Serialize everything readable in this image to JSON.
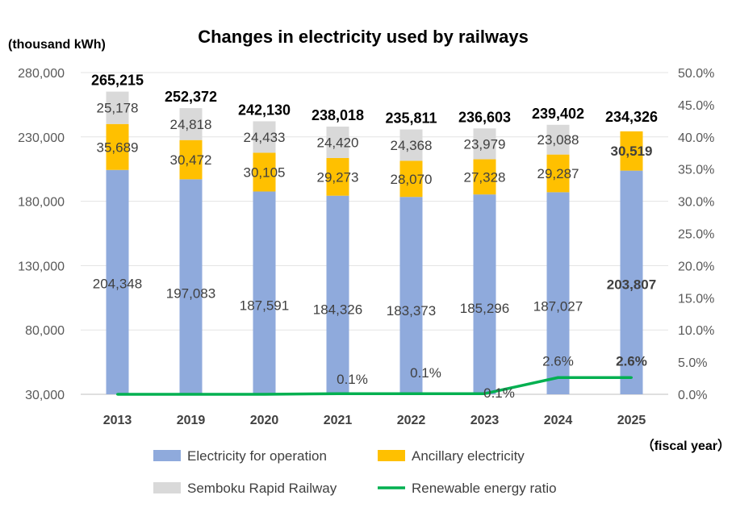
{
  "chart_data": {
    "type": "bar",
    "title": "Changes in electricity used by railways",
    "ylabel": "(thousand kWh)",
    "xlabel": "（fiscal year）",
    "categories": [
      "2013",
      "2019",
      "2020",
      "2021",
      "2022",
      "2023",
      "2024",
      "2025"
    ],
    "series": [
      {
        "name": "Electricity for operation",
        "values": [
          204348,
          197083,
          187591,
          184326,
          183373,
          185296,
          187027,
          203807
        ],
        "labels": [
          "204,348",
          "197,083",
          "187,591",
          "184,326",
          "183,373",
          "185,296",
          "187,027",
          "203,807"
        ],
        "color": "#8FAADC"
      },
      {
        "name": "Ancillary electricity",
        "values": [
          35689,
          30472,
          30105,
          29273,
          28070,
          27328,
          29287,
          30519
        ],
        "labels": [
          "35,689",
          "30,472",
          "30,105",
          "29,273",
          "28,070",
          "27,328",
          "29,287",
          "30,519"
        ],
        "color": "#FFC000"
      },
      {
        "name": "Semboku Rapid Railway",
        "values": [
          25178,
          24818,
          24433,
          24420,
          24368,
          23979,
          23088,
          null
        ],
        "labels": [
          "25,178",
          "24,818",
          "24,433",
          "24,420",
          "24,368",
          "23,979",
          "23,088",
          ""
        ],
        "color": "#D9D9D9"
      }
    ],
    "totals": [
      "265,215",
      "252,372",
      "242,130",
      "238,018",
      "235,811",
      "236,603",
      "239,402",
      "234,326"
    ],
    "line_series": {
      "name": "Renewable energy ratio",
      "values": [
        0,
        0,
        0,
        0.1,
        0.1,
        0.1,
        2.6,
        2.6
      ],
      "labels": [
        "",
        "",
        "",
        "0.1%",
        "0.1%",
        "0.1%",
        "2.6%",
        "2.6%"
      ],
      "color": "#00B050"
    },
    "ylim": [
      30000,
      280000
    ],
    "y_ticks": [
      "30,000",
      "80,000",
      "130,000",
      "180,000",
      "230,000",
      "280,000"
    ],
    "y2lim": [
      0,
      50
    ],
    "y2_ticks": [
      "0.0%",
      "5.0%",
      "10.0%",
      "15.0%",
      "20.0%",
      "25.0%",
      "30.0%",
      "35.0%",
      "40.0%",
      "45.0%",
      "50.0%"
    ],
    "highlight_color": "#FF0000",
    "legend_position": "bottom"
  }
}
